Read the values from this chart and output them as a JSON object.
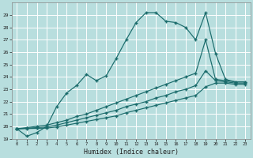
{
  "xlabel": "Humidex (Indice chaleur)",
  "bg_color": "#b8dede",
  "grid_color": "#ffffff",
  "line_color": "#1a6b6b",
  "xlim": [
    -0.5,
    23.5
  ],
  "ylim": [
    19,
    30
  ],
  "yticks": [
    19,
    20,
    21,
    22,
    23,
    24,
    25,
    26,
    27,
    28,
    29
  ],
  "xticks": [
    0,
    1,
    2,
    3,
    4,
    5,
    6,
    7,
    8,
    9,
    10,
    11,
    12,
    13,
    14,
    15,
    16,
    17,
    18,
    19,
    20,
    21,
    22,
    23
  ],
  "line1_x": [
    0,
    1,
    2,
    3,
    4,
    5,
    6,
    7,
    8,
    9,
    10,
    11,
    12,
    13,
    14,
    15,
    16,
    17,
    18,
    19,
    20,
    21,
    22,
    23
  ],
  "line1_y": [
    19.8,
    19.2,
    19.5,
    20.0,
    21.6,
    22.7,
    23.3,
    24.2,
    23.7,
    24.1,
    25.5,
    27.0,
    28.4,
    29.2,
    29.2,
    28.5,
    28.4,
    28.0,
    27.0,
    29.2,
    25.9,
    23.8,
    23.6,
    23.6
  ],
  "line2_x": [
    0,
    1,
    2,
    3,
    4,
    5,
    6,
    7,
    8,
    9,
    10,
    11,
    12,
    13,
    14,
    15,
    16,
    17,
    18,
    19,
    20,
    21,
    22,
    23
  ],
  "line2_y": [
    19.8,
    19.9,
    20.0,
    20.1,
    20.3,
    20.5,
    20.8,
    21.0,
    21.3,
    21.6,
    21.9,
    22.2,
    22.5,
    22.8,
    23.1,
    23.4,
    23.7,
    24.0,
    24.3,
    27.0,
    23.8,
    23.7,
    23.6,
    23.6
  ],
  "line3_x": [
    0,
    1,
    2,
    3,
    4,
    5,
    6,
    7,
    8,
    9,
    10,
    11,
    12,
    13,
    14,
    15,
    16,
    17,
    18,
    19,
    20,
    21,
    22,
    23
  ],
  "line3_y": [
    19.8,
    19.85,
    19.9,
    19.95,
    20.1,
    20.3,
    20.5,
    20.7,
    20.9,
    21.1,
    21.3,
    21.6,
    21.8,
    22.0,
    22.3,
    22.5,
    22.8,
    23.0,
    23.3,
    24.5,
    23.7,
    23.6,
    23.5,
    23.5
  ],
  "line4_x": [
    0,
    1,
    2,
    3,
    4,
    5,
    6,
    7,
    8,
    9,
    10,
    11,
    12,
    13,
    14,
    15,
    16,
    17,
    18,
    19,
    20,
    21,
    22,
    23
  ],
  "line4_y": [
    19.8,
    19.82,
    19.84,
    19.86,
    19.95,
    20.1,
    20.25,
    20.4,
    20.55,
    20.7,
    20.85,
    21.1,
    21.3,
    21.5,
    21.7,
    21.9,
    22.1,
    22.3,
    22.5,
    23.2,
    23.5,
    23.5,
    23.4,
    23.4
  ]
}
